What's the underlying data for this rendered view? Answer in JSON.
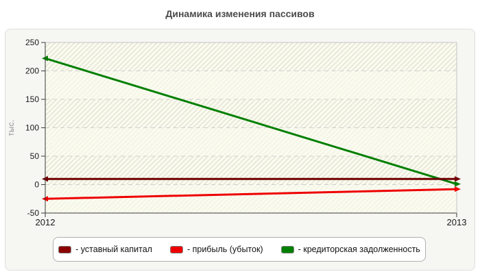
{
  "chart_data": {
    "type": "line",
    "title": "Динамика изменения пассивов",
    "ylabel": "тыс.",
    "x_labels": [
      "2012",
      "2013"
    ],
    "ylim": [
      -50,
      250
    ],
    "yticks": [
      250,
      200,
      150,
      100,
      50,
      0,
      -50
    ],
    "grid": "horizontal-dashed",
    "legend_position": "bottom",
    "series": [
      {
        "name": "уставный капитал",
        "color": "#700000",
        "values": [
          10,
          10
        ]
      },
      {
        "name": "прибыль (убыток)",
        "color": "#ee0000",
        "values": [
          -25,
          -8
        ]
      },
      {
        "name": "кредиторская задолженность",
        "color": "#007f00",
        "values": [
          222,
          1
        ]
      }
    ],
    "legend": [
      {
        "label": "- уставный капитал",
        "color": "#8b0000"
      },
      {
        "label": "- прибыль (убыток)",
        "color": "#ee0000"
      },
      {
        "label": "- кредиторская задолженность",
        "color": "#008000"
      }
    ]
  },
  "colors": {
    "title": "#4a4a4a",
    "panel_bg": "#f6f6f3",
    "panel_border": "#dedede",
    "plot_base": "#fbfcf0",
    "hatch_line": "#e7e6d8",
    "grid": "#cfcfcf",
    "axis_dark": "#3a3a3a",
    "border_light": "#c4c4c4",
    "tick_label": "#1a1a1a",
    "ylabel": "#8f8f8f",
    "legend_border": "#b0b0b0"
  }
}
